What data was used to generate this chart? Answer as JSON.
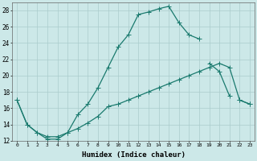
{
  "xlabel": "Humidex (Indice chaleur)",
  "bg_color": "#cce8e8",
  "grid_color": "#aacccc",
  "line_color": "#1a7a6e",
  "xlim": [
    -0.5,
    23.5
  ],
  "ylim": [
    12,
    29
  ],
  "xtick_vals": [
    0,
    1,
    2,
    3,
    4,
    5,
    6,
    7,
    8,
    9,
    10,
    11,
    12,
    13,
    14,
    15,
    16,
    17,
    18,
    19,
    20,
    21,
    22,
    23
  ],
  "ytick_vals": [
    12,
    14,
    16,
    18,
    20,
    22,
    24,
    26,
    28
  ],
  "line1_x": [
    0,
    1,
    2,
    3,
    4,
    5,
    6,
    7,
    8,
    9,
    10,
    11,
    12,
    13,
    14,
    15,
    16,
    17,
    18,
    19,
    20,
    21,
    22,
    23
  ],
  "line1_y": [
    17,
    14,
    13,
    12.5,
    12.5,
    13,
    13.5,
    14.2,
    15,
    16.2,
    16.5,
    17.0,
    17.5,
    18,
    18.5,
    19,
    19.5,
    20,
    20.5,
    21,
    21.5,
    21,
    17,
    16.5
  ],
  "line2_x": [
    0,
    1,
    2,
    3,
    4,
    5,
    6,
    7,
    8,
    9,
    10,
    11,
    12,
    13,
    14,
    15,
    16,
    17,
    18
  ],
  "line2_y": [
    17,
    14,
    13,
    12.2,
    12.2,
    13,
    15.2,
    16.5,
    18.5,
    21,
    23.5,
    25,
    27.5,
    27.8,
    28.2,
    28.5,
    26.5,
    25,
    24.5
  ],
  "line3_x": [
    0,
    1,
    2,
    3,
    4,
    5,
    6,
    7,
    8,
    9,
    10,
    11,
    12,
    13,
    14,
    15,
    16,
    17,
    18,
    19,
    20,
    21,
    22,
    23
  ],
  "line3_y": [
    null,
    null,
    null,
    null,
    null,
    null,
    null,
    null,
    null,
    null,
    null,
    null,
    null,
    null,
    null,
    null,
    null,
    null,
    null,
    21.5,
    20.5,
    17.5,
    null,
    null
  ],
  "line4_x": [
    0,
    1,
    2,
    3,
    4,
    5,
    6,
    7,
    8,
    9,
    10,
    11,
    12,
    13,
    14,
    15,
    16,
    17,
    18,
    19,
    20,
    21,
    22,
    23
  ],
  "line4_y": [
    null,
    null,
    null,
    null,
    null,
    null,
    null,
    null,
    null,
    null,
    null,
    null,
    null,
    null,
    null,
    null,
    null,
    null,
    null,
    null,
    null,
    null,
    17,
    16.5
  ]
}
